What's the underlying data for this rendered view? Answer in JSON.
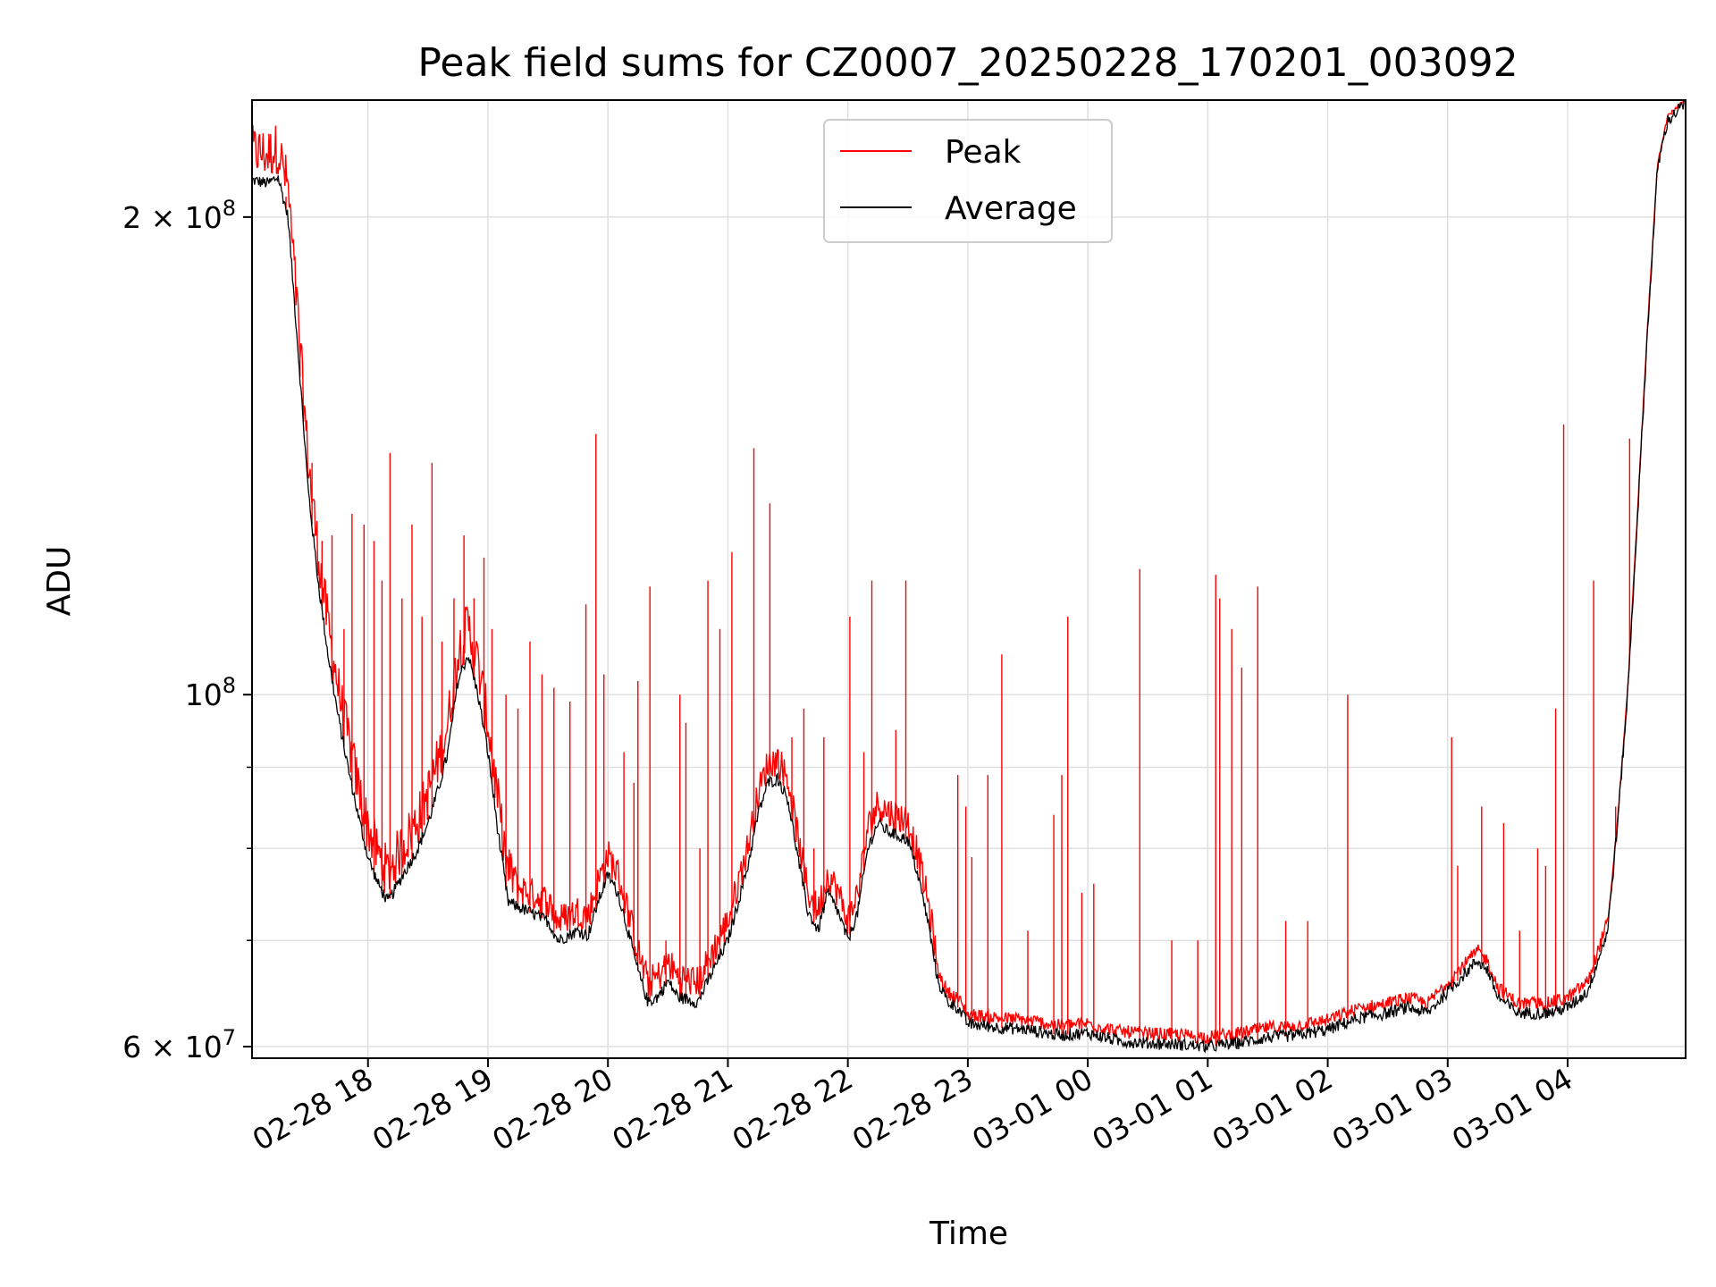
{
  "chart_data": {
    "type": "line",
    "title": "Peak field sums for CZ0007_20250228_170201_003092",
    "xlabel": "Time",
    "ylabel": "ADU",
    "y_scale": "log",
    "ylim": [
      59000000,
      237000000
    ],
    "xlim": [
      "2025-02-28 17:02",
      "2025-03-01 04:59"
    ],
    "grid": true,
    "legend": {
      "placement": "upper center",
      "entries": [
        "Peak",
        "Average"
      ]
    },
    "colors": {
      "Peak": "#ff0000",
      "Average": "#000000",
      "grid": "#e0e0e0"
    },
    "x_ticks": [
      {
        "value": "2025-02-28 18:00",
        "label": "02-28 18"
      },
      {
        "value": "2025-02-28 19:00",
        "label": "02-28 19"
      },
      {
        "value": "2025-02-28 20:00",
        "label": "02-28 20"
      },
      {
        "value": "2025-02-28 21:00",
        "label": "02-28 21"
      },
      {
        "value": "2025-02-28 22:00",
        "label": "02-28 22"
      },
      {
        "value": "2025-02-28 23:00",
        "label": "02-28 23"
      },
      {
        "value": "2025-03-01 00:00",
        "label": "03-01 00"
      },
      {
        "value": "2025-03-01 01:00",
        "label": "03-01 01"
      },
      {
        "value": "2025-03-01 02:00",
        "label": "03-01 02"
      },
      {
        "value": "2025-03-01 03:00",
        "label": "03-01 03"
      },
      {
        "value": "2025-03-01 04:00",
        "label": "03-01 04"
      }
    ],
    "y_ticks": [
      {
        "value": 60000000,
        "base": "6 × 10",
        "exp": "7"
      },
      {
        "value": 100000000,
        "base": "10",
        "exp": "8"
      },
      {
        "value": 200000000,
        "base": "2 × 10",
        "exp": "8"
      }
    ],
    "series": [
      {
        "name": "Average",
        "points": [
          [
            "2025-02-28 17:02",
            211000000
          ],
          [
            "2025-02-28 17:10",
            210000000
          ],
          [
            "2025-02-28 17:15",
            212000000
          ],
          [
            "2025-02-28 17:20",
            200000000
          ],
          [
            "2025-02-28 17:25",
            165000000
          ],
          [
            "2025-02-28 17:30",
            135000000
          ],
          [
            "2025-02-28 17:35",
            118000000
          ],
          [
            "2025-02-28 17:40",
            106000000
          ],
          [
            "2025-02-28 17:45",
            97000000
          ],
          [
            "2025-02-28 17:50",
            90000000
          ],
          [
            "2025-02-28 17:55",
            84000000
          ],
          [
            "2025-02-28 18:00",
            79000000
          ],
          [
            "2025-02-28 18:05",
            76000000
          ],
          [
            "2025-02-28 18:10",
            74000000
          ],
          [
            "2025-02-28 18:15",
            76000000
          ],
          [
            "2025-02-28 18:20",
            78000000
          ],
          [
            "2025-02-28 18:25",
            80000000
          ],
          [
            "2025-02-28 18:30",
            83000000
          ],
          [
            "2025-02-28 18:35",
            87000000
          ],
          [
            "2025-02-28 18:40",
            92000000
          ],
          [
            "2025-02-28 18:45",
            102000000
          ],
          [
            "2025-02-28 18:50",
            106000000
          ],
          [
            "2025-02-28 18:55",
            100000000
          ],
          [
            "2025-02-28 19:00",
            92000000
          ],
          [
            "2025-02-28 19:05",
            82000000
          ],
          [
            "2025-02-28 19:10",
            74000000
          ],
          [
            "2025-02-28 19:20",
            73000000
          ],
          [
            "2025-02-28 19:30",
            72000000
          ],
          [
            "2025-02-28 19:35",
            70000000
          ],
          [
            "2025-02-28 19:45",
            71000000
          ],
          [
            "2025-02-28 19:50",
            70500000
          ],
          [
            "2025-02-28 19:55",
            74000000
          ],
          [
            "2025-02-28 20:00",
            77000000
          ],
          [
            "2025-02-28 20:05",
            75000000
          ],
          [
            "2025-02-28 20:10",
            71000000
          ],
          [
            "2025-02-28 20:15",
            67000000
          ],
          [
            "2025-02-28 20:20",
            64000000
          ],
          [
            "2025-02-28 20:25",
            64500000
          ],
          [
            "2025-02-28 20:30",
            66000000
          ],
          [
            "2025-02-28 20:35",
            64500000
          ],
          [
            "2025-02-28 20:45",
            64000000
          ],
          [
            "2025-02-28 20:50",
            66000000
          ],
          [
            "2025-02-28 21:00",
            70000000
          ],
          [
            "2025-02-28 21:10",
            78000000
          ],
          [
            "2025-02-28 21:15",
            84000000
          ],
          [
            "2025-02-28 21:20",
            88000000
          ],
          [
            "2025-02-28 21:25",
            88500000
          ],
          [
            "2025-02-28 21:30",
            86000000
          ],
          [
            "2025-02-28 21:35",
            79000000
          ],
          [
            "2025-02-28 21:40",
            73000000
          ],
          [
            "2025-02-28 21:45",
            71000000
          ],
          [
            "2025-02-28 21:50",
            75000000
          ],
          [
            "2025-02-28 21:55",
            73000000
          ],
          [
            "2025-02-28 22:00",
            70000000
          ],
          [
            "2025-02-28 22:05",
            73000000
          ],
          [
            "2025-02-28 22:10",
            80000000
          ],
          [
            "2025-02-28 22:15",
            83000000
          ],
          [
            "2025-02-28 22:20",
            82000000
          ],
          [
            "2025-02-28 22:30",
            81000000
          ],
          [
            "2025-02-28 22:35",
            77000000
          ],
          [
            "2025-02-28 22:40",
            72000000
          ],
          [
            "2025-02-28 22:45",
            66000000
          ],
          [
            "2025-02-28 22:50",
            64000000
          ],
          [
            "2025-02-28 22:55",
            63500000
          ],
          [
            "2025-02-28 23:00",
            62000000
          ],
          [
            "2025-02-28 23:15",
            61700000
          ],
          [
            "2025-02-28 23:30",
            61500000
          ],
          [
            "2025-02-28 23:45",
            61000000
          ],
          [
            "2025-03-01 00:00",
            61200000
          ],
          [
            "2025-03-01 00:15",
            60500000
          ],
          [
            "2025-03-01 00:30",
            60300000
          ],
          [
            "2025-03-01 00:45",
            60200000
          ],
          [
            "2025-03-01 01:00",
            60000000
          ],
          [
            "2025-03-01 01:15",
            60300000
          ],
          [
            "2025-03-01 01:30",
            60800000
          ],
          [
            "2025-03-01 01:45",
            61000000
          ],
          [
            "2025-03-01 02:00",
            61500000
          ],
          [
            "2025-03-01 02:15",
            62500000
          ],
          [
            "2025-03-01 02:30",
            63000000
          ],
          [
            "2025-03-01 02:40",
            63500000
          ],
          [
            "2025-03-01 02:50",
            63000000
          ],
          [
            "2025-03-01 03:00",
            65000000
          ],
          [
            "2025-03-01 03:10",
            67000000
          ],
          [
            "2025-03-01 03:15",
            68000000
          ],
          [
            "2025-03-01 03:20",
            67000000
          ],
          [
            "2025-03-01 03:25",
            64500000
          ],
          [
            "2025-03-01 03:35",
            63000000
          ],
          [
            "2025-03-01 03:50",
            63000000
          ],
          [
            "2025-03-01 04:00",
            63500000
          ],
          [
            "2025-03-01 04:10",
            65000000
          ],
          [
            "2025-03-01 04:20",
            71000000
          ],
          [
            "2025-03-01 04:25",
            83000000
          ],
          [
            "2025-03-01 04:30",
            100000000
          ],
          [
            "2025-03-01 04:35",
            130000000
          ],
          [
            "2025-03-01 04:40",
            170000000
          ],
          [
            "2025-03-01 04:45",
            215000000
          ],
          [
            "2025-03-01 04:50",
            230000000
          ],
          [
            "2025-03-01 04:59",
            236000000
          ]
        ]
      },
      {
        "name": "Peak",
        "spikes": [
          [
            "2025-02-28 17:19",
            206000000
          ],
          [
            "2025-02-28 17:26",
            165000000
          ],
          [
            "2025-02-28 17:32",
            140000000
          ],
          [
            "2025-02-28 17:37",
            125000000
          ],
          [
            "2025-02-28 17:42",
            126000000
          ],
          [
            "2025-02-28 17:48",
            110000000
          ],
          [
            "2025-02-28 17:52",
            130000000
          ],
          [
            "2025-02-28 17:58",
            128000000
          ],
          [
            "2025-02-28 18:03",
            125000000
          ],
          [
            "2025-02-28 18:07",
            118000000
          ],
          [
            "2025-02-28 18:11",
            142000000
          ],
          [
            "2025-02-28 18:17",
            115000000
          ],
          [
            "2025-02-28 18:22",
            128000000
          ],
          [
            "2025-02-28 18:27",
            112000000
          ],
          [
            "2025-02-28 18:32",
            140000000
          ],
          [
            "2025-02-28 18:37",
            108000000
          ],
          [
            "2025-02-28 18:43",
            115000000
          ],
          [
            "2025-02-28 18:48",
            126000000
          ],
          [
            "2025-02-28 18:53",
            115000000
          ],
          [
            "2025-02-28 18:58",
            122000000
          ],
          [
            "2025-02-28 19:02",
            110000000
          ],
          [
            "2025-02-28 19:09",
            100000000
          ],
          [
            "2025-02-28 19:15",
            98000000
          ],
          [
            "2025-02-28 19:21",
            108000000
          ],
          [
            "2025-02-28 19:27",
            103000000
          ],
          [
            "2025-02-28 19:33",
            101000000
          ],
          [
            "2025-02-28 19:41",
            99000000
          ],
          [
            "2025-02-28 19:49",
            114000000
          ],
          [
            "2025-02-28 19:54",
            146000000
          ],
          [
            "2025-02-28 19:58",
            103000000
          ],
          [
            "2025-02-28 20:08",
            92000000
          ],
          [
            "2025-02-28 20:13",
            88000000
          ],
          [
            "2025-02-28 20:15",
            102000000
          ],
          [
            "2025-02-28 20:21",
            117000000
          ],
          [
            "2025-02-28 20:29",
            70000000
          ],
          [
            "2025-02-28 20:36",
            100000000
          ],
          [
            "2025-02-28 20:39",
            96000000
          ],
          [
            "2025-02-28 20:46",
            80000000
          ],
          [
            "2025-02-28 20:50",
            118000000
          ],
          [
            "2025-02-28 20:56",
            110000000
          ],
          [
            "2025-02-28 21:02",
            123000000
          ],
          [
            "2025-02-28 21:13",
            143000000
          ],
          [
            "2025-02-28 21:21",
            132000000
          ],
          [
            "2025-02-28 21:32",
            94000000
          ],
          [
            "2025-02-28 21:38",
            98000000
          ],
          [
            "2025-02-28 21:43",
            80000000
          ],
          [
            "2025-02-28 21:48",
            94000000
          ],
          [
            "2025-02-28 22:01",
            112000000
          ],
          [
            "2025-02-28 22:08",
            92000000
          ],
          [
            "2025-02-28 22:12",
            118000000
          ],
          [
            "2025-02-28 22:24",
            95000000
          ],
          [
            "2025-02-28 22:29",
            118000000
          ],
          [
            "2025-02-28 22:55",
            89000000
          ],
          [
            "2025-02-28 22:59",
            85000000
          ],
          [
            "2025-02-28 23:02",
            79000000
          ],
          [
            "2025-02-28 23:10",
            89000000
          ],
          [
            "2025-02-28 23:17",
            106000000
          ],
          [
            "2025-02-28 23:30",
            71000000
          ],
          [
            "2025-02-28 23:43",
            84000000
          ],
          [
            "2025-02-28 23:47",
            89000000
          ],
          [
            "2025-02-28 23:50",
            112000000
          ],
          [
            "2025-02-28 23:57",
            75000000
          ],
          [
            "2025-03-01 00:03",
            76000000
          ],
          [
            "2025-03-01 00:26",
            120000000
          ],
          [
            "2025-03-01 00:42",
            70000000
          ],
          [
            "2025-03-01 00:55",
            70000000
          ],
          [
            "2025-03-01 01:04",
            119000000
          ],
          [
            "2025-03-01 01:06",
            115000000
          ],
          [
            "2025-03-01 01:12",
            110000000
          ],
          [
            "2025-03-01 01:17",
            104000000
          ],
          [
            "2025-03-01 01:25",
            117000000
          ],
          [
            "2025-03-01 01:39",
            72000000
          ],
          [
            "2025-03-01 01:50",
            72000000
          ],
          [
            "2025-03-01 02:10",
            100000000
          ],
          [
            "2025-03-01 03:02",
            94000000
          ],
          [
            "2025-03-01 03:05",
            78000000
          ],
          [
            "2025-03-01 03:17",
            85000000
          ],
          [
            "2025-03-01 03:28",
            83000000
          ],
          [
            "2025-03-01 03:36",
            71000000
          ],
          [
            "2025-03-01 03:45",
            80000000
          ],
          [
            "2025-03-01 03:49",
            78000000
          ],
          [
            "2025-03-01 03:54",
            98000000
          ],
          [
            "2025-03-01 03:58",
            148000000
          ],
          [
            "2025-03-01 04:13",
            118000000
          ],
          [
            "2025-03-01 04:24",
            85000000
          ],
          [
            "2025-03-01 04:31",
            145000000
          ]
        ]
      }
    ]
  }
}
